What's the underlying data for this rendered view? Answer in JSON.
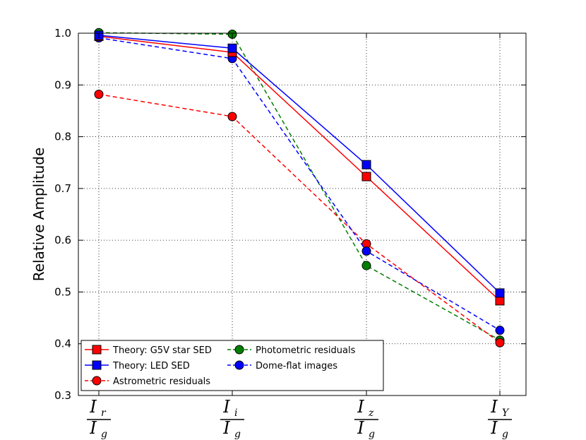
{
  "chart_data": {
    "type": "line",
    "title": "",
    "xlabel": "",
    "ylabel": "Relative Amplitude",
    "ylim": [
      0.3,
      1.0
    ],
    "yticks": [
      "0.3",
      "0.4",
      "0.5",
      "0.6",
      "0.7",
      "0.8",
      "0.9",
      "1.0"
    ],
    "grid": true,
    "legend_position": "lower-left",
    "categories": [
      {
        "num": "I",
        "num_sub": "r",
        "den": "I",
        "den_sub": "g"
      },
      {
        "num": "I",
        "num_sub": "i",
        "den": "I",
        "den_sub": "g"
      },
      {
        "num": "I",
        "num_sub": "z",
        "den": "I",
        "den_sub": "g"
      },
      {
        "num": "I",
        "num_sub": "Y",
        "den": "I",
        "den_sub": "g"
      }
    ],
    "series": [
      {
        "name": "Theory: G5V star SED",
        "color": "#ff0000",
        "line": "solid",
        "marker": "square",
        "values": [
          0.994,
          0.963,
          0.723,
          0.483
        ]
      },
      {
        "name": "Theory: LED SED",
        "color": "#0000ff",
        "line": "solid",
        "marker": "square",
        "values": [
          0.996,
          0.971,
          0.746,
          0.498
        ]
      },
      {
        "name": "Astrometric residuals",
        "color": "#ff0000",
        "line": "dashed",
        "marker": "circle",
        "values": [
          0.882,
          0.839,
          0.593,
          0.402
        ]
      },
      {
        "name": "Photometric residuals",
        "color": "#007f00",
        "line": "dashed",
        "marker": "circle",
        "values": [
          1.001,
          0.998,
          0.551,
          0.407
        ]
      },
      {
        "name": "Dome-flat images",
        "color": "#0000ff",
        "line": "dashed",
        "marker": "circle",
        "values": [
          0.991,
          0.951,
          0.579,
          0.426
        ]
      }
    ]
  }
}
